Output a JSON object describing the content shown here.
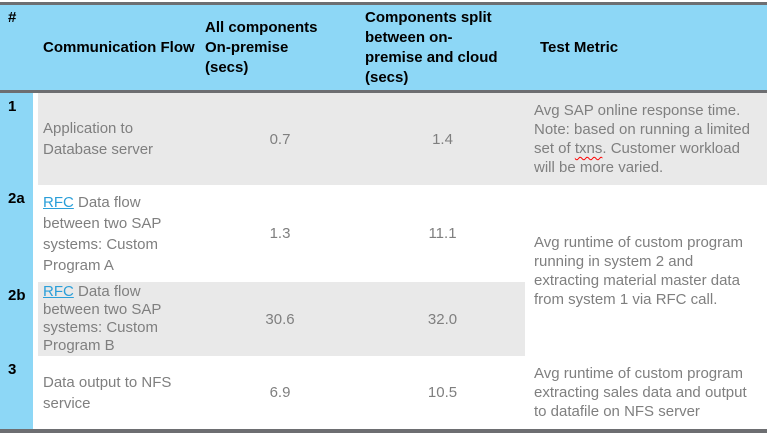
{
  "table": {
    "header": {
      "num": "#",
      "flow": "Communication Flow",
      "onprem": "All components\nOn-premise\n(secs)",
      "split": "Components split\nbetween on-\npremise and cloud\n(secs)",
      "metric": "Test Metric"
    },
    "rows": {
      "r1": {
        "num": "1",
        "flow": "Application to\nDatabase server",
        "onprem": "0.7",
        "split": "1.4",
        "metric_pre": "Avg SAP online response time.\nNote: based on running a limited\nset of ",
        "metric_misspelled": "txns",
        "metric_post": ". Customer workload\nwill be more varied."
      },
      "r2a": {
        "num": "2a",
        "flow_link": "RFC",
        "flow_rest": " Data flow\nbetween two SAP\nsystems: Custom\nProgram A",
        "onprem": "1.3",
        "split": "11.1"
      },
      "r2b": {
        "num": "2b",
        "flow_link": "RFC",
        "flow_rest": " Data flow\nbetween two SAP\nsystems: Custom\nProgram B",
        "onprem": "30.6",
        "split": "32.0"
      },
      "r2_metric_merged": "Avg runtime of custom program\nrunning in system 2 and\nextracting material master data\nfrom system 1 via RFC call.",
      "r3": {
        "num": "3",
        "flow": "Data output to NFS\nservice",
        "onprem": "6.9",
        "split": "10.5",
        "metric": "Avg runtime of custom program\nextracting sales data and output\nto datafile on NFS server"
      }
    }
  },
  "colors": {
    "header_bg": "#8DD7F6",
    "band_bg": "#E9E9E9",
    "border": "#6D6E71",
    "body_text": "#7F7F7F",
    "header_text": "#000000",
    "link": "#2B9FD9",
    "spellcheck": "#FF0000"
  }
}
